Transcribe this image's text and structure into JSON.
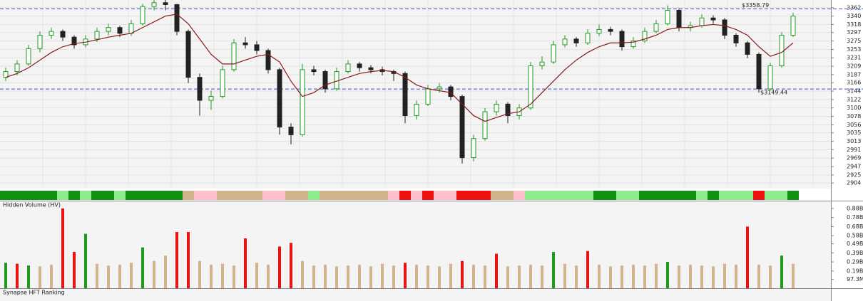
{
  "chart_data": [
    {
      "type": "candlestick",
      "ylim": [
        2895,
        3382
      ],
      "yticks": [
        3362,
        3340,
        3318,
        3297,
        3275,
        3253,
        3231,
        3209,
        3187,
        3166,
        3144,
        3122,
        3100,
        3078,
        3056,
        3035,
        3013,
        2991,
        2969,
        2947,
        2925,
        2904
      ],
      "grid": true,
      "up_color": "#1f9a1f",
      "down_color": "#222222",
      "ma_color": "#8b1a1a",
      "annotation_color": "#3f4fe0",
      "ohlc": [
        [
          3180,
          3205,
          3170,
          3195
        ],
        [
          3195,
          3225,
          3185,
          3215
        ],
        [
          3215,
          3265,
          3210,
          3255
        ],
        [
          3255,
          3300,
          3245,
          3290
        ],
        [
          3290,
          3310,
          3280,
          3300
        ],
        [
          3300,
          3305,
          3275,
          3285
        ],
        [
          3285,
          3290,
          3255,
          3265
        ],
        [
          3265,
          3290,
          3258,
          3280
        ],
        [
          3280,
          3310,
          3272,
          3300
        ],
        [
          3300,
          3320,
          3290,
          3310
        ],
        [
          3310,
          3315,
          3285,
          3295
        ],
        [
          3295,
          3330,
          3288,
          3320
        ],
        [
          3320,
          3372,
          3315,
          3365
        ],
        [
          3365,
          3385,
          3355,
          3375
        ],
        [
          3375,
          3382,
          3355,
          3370
        ],
        [
          3370,
          3372,
          3290,
          3300
        ],
        [
          3300,
          3305,
          3165,
          3180
        ],
        [
          3180,
          3190,
          3080,
          3120
        ],
        [
          3120,
          3145,
          3095,
          3130
        ],
        [
          3130,
          3210,
          3125,
          3200
        ],
        [
          3200,
          3280,
          3195,
          3270
        ],
        [
          3270,
          3285,
          3255,
          3265
        ],
        [
          3265,
          3275,
          3240,
          3250
        ],
        [
          3250,
          3255,
          3190,
          3200
        ],
        [
          3200,
          3205,
          3030,
          3050
        ],
        [
          3050,
          3060,
          3005,
          3030
        ],
        [
          3030,
          3215,
          3025,
          3200
        ],
        [
          3200,
          3210,
          3185,
          3195
        ],
        [
          3195,
          3200,
          3140,
          3150
        ],
        [
          3150,
          3205,
          3145,
          3195
        ],
        [
          3195,
          3225,
          3190,
          3215
        ],
        [
          3215,
          3220,
          3195,
          3205
        ],
        [
          3205,
          3212,
          3190,
          3200
        ],
        [
          3200,
          3208,
          3185,
          3195
        ],
        [
          3195,
          3200,
          3170,
          3190
        ],
        [
          3190,
          3195,
          3060,
          3080
        ],
        [
          3080,
          3120,
          3070,
          3110
        ],
        [
          3110,
          3160,
          3105,
          3150
        ],
        [
          3150,
          3165,
          3140,
          3155
        ],
        [
          3155,
          3160,
          3120,
          3130
        ],
        [
          3130,
          3135,
          2955,
          2970
        ],
        [
          2970,
          3030,
          2960,
          3020
        ],
        [
          3020,
          3100,
          3015,
          3090
        ],
        [
          3090,
          3120,
          3080,
          3110
        ],
        [
          3110,
          3115,
          3060,
          3080
        ],
        [
          3080,
          3110,
          3070,
          3100
        ],
        [
          3100,
          3220,
          3095,
          3210
        ],
        [
          3210,
          3235,
          3200,
          3220
        ],
        [
          3220,
          3275,
          3215,
          3265
        ],
        [
          3265,
          3290,
          3258,
          3280
        ],
        [
          3280,
          3285,
          3260,
          3270
        ],
        [
          3270,
          3305,
          3265,
          3295
        ],
        [
          3295,
          3318,
          3288,
          3305
        ],
        [
          3305,
          3312,
          3290,
          3300
        ],
        [
          3300,
          3305,
          3250,
          3260
        ],
        [
          3260,
          3285,
          3255,
          3275
        ],
        [
          3275,
          3310,
          3270,
          3300
        ],
        [
          3300,
          3330,
          3295,
          3320
        ],
        [
          3320,
          3368,
          3315,
          3355
        ],
        [
          3355,
          3360,
          3300,
          3310
        ],
        [
          3310,
          3325,
          3300,
          3315
        ],
        [
          3315,
          3345,
          3310,
          3335
        ],
        [
          3335,
          3342,
          3320,
          3330
        ],
        [
          3330,
          3335,
          3280,
          3290
        ],
        [
          3290,
          3295,
          3260,
          3270
        ],
        [
          3270,
          3275,
          3230,
          3240
        ],
        [
          3240,
          3245,
          3140,
          3150
        ],
        [
          3150,
          3218,
          3145,
          3210
        ],
        [
          3210,
          3298,
          3205,
          3290
        ],
        [
          3290,
          3348,
          3285,
          3340
        ]
      ],
      "moving_average": [
        3180,
        3190,
        3205,
        3225,
        3245,
        3260,
        3268,
        3272,
        3278,
        3285,
        3290,
        3295,
        3310,
        3325,
        3340,
        3345,
        3320,
        3280,
        3240,
        3215,
        3215,
        3225,
        3235,
        3240,
        3220,
        3170,
        3130,
        3140,
        3160,
        3170,
        3180,
        3190,
        3195,
        3198,
        3195,
        3180,
        3160,
        3150,
        3145,
        3140,
        3110,
        3080,
        3065,
        3075,
        3085,
        3090,
        3110,
        3140,
        3170,
        3200,
        3225,
        3245,
        3260,
        3270,
        3270,
        3272,
        3280,
        3290,
        3305,
        3310,
        3310,
        3315,
        3318,
        3315,
        3305,
        3290,
        3260,
        3235,
        3245,
        3270
      ],
      "band_colors": [
        "#129212",
        "#129212",
        "#129212",
        "#129212",
        "#129212",
        "#8eeb8e",
        "#129212",
        "#8eeb8e",
        "#129212",
        "#129212",
        "#8eeb8e",
        "#129212",
        "#129212",
        "#129212",
        "#129212",
        "#129212",
        "#d2b48c",
        "#ffc0cb",
        "#ffc0cb",
        "#d2b48c",
        "#d2b48c",
        "#d2b48c",
        "#d2b48c",
        "#ffc0cb",
        "#ffc0cb",
        "#d2b48c",
        "#d2b48c",
        "#8eeb8e",
        "#d2b48c",
        "#d2b48c",
        "#d2b48c",
        "#d2b48c",
        "#d2b48c",
        "#d2b48c",
        "#ffc0cb",
        "#ee1111",
        "#ffc0cb",
        "#ee1111",
        "#ffc0cb",
        "#ffc0cb",
        "#ee1111",
        "#ee1111",
        "#ee1111",
        "#d2b48c",
        "#d2b48c",
        "#ffc0cb",
        "#8eeb8e",
        "#8eeb8e",
        "#8eeb8e",
        "#8eeb8e",
        "#8eeb8e",
        "#8eeb8e",
        "#129212",
        "#129212",
        "#8eeb8e",
        "#8eeb8e",
        "#129212",
        "#129212",
        "#129212",
        "#129212",
        "#129212",
        "#8eeb8e",
        "#129212",
        "#8eeb8e",
        "#8eeb8e",
        "#8eeb8e",
        "#ee1111",
        "#8eeb8e",
        "#8eeb8e",
        "#129212"
      ],
      "annotations": [
        {
          "value": 3358.79,
          "label": "$3358.79"
        },
        {
          "value": 3149.44,
          "label": "$3149.44"
        }
      ]
    },
    {
      "type": "bar",
      "title": "Hidden Volume (HV)",
      "ylim": [
        0,
        0.958
      ],
      "yticks": [
        {
          "value": 0.88,
          "label": "0.88B"
        },
        {
          "value": 0.78,
          "label": "0.78B"
        },
        {
          "value": 0.68,
          "label": "0.68B"
        },
        {
          "value": 0.58,
          "label": "0.58B"
        },
        {
          "value": 0.49,
          "label": "0.49B"
        },
        {
          "value": 0.39,
          "label": "0.39B"
        },
        {
          "value": 0.29,
          "label": "0.29B"
        },
        {
          "value": 0.19,
          "label": "0.19B"
        },
        {
          "value": 0.0973,
          "label": "97.3M"
        }
      ],
      "values": [
        0.28,
        0.27,
        0.25,
        0.24,
        0.26,
        0.88,
        0.4,
        0.6,
        0.27,
        0.25,
        0.26,
        0.28,
        0.45,
        0.3,
        0.36,
        0.62,
        0.62,
        0.3,
        0.26,
        0.27,
        0.25,
        0.55,
        0.28,
        0.26,
        0.46,
        0.5,
        0.3,
        0.25,
        0.26,
        0.24,
        0.25,
        0.26,
        0.24,
        0.27,
        0.25,
        0.28,
        0.26,
        0.25,
        0.24,
        0.27,
        0.3,
        0.26,
        0.25,
        0.38,
        0.24,
        0.25,
        0.26,
        0.25,
        0.4,
        0.27,
        0.25,
        0.41,
        0.26,
        0.24,
        0.25,
        0.26,
        0.25,
        0.27,
        0.29,
        0.25,
        0.26,
        0.25,
        0.24,
        0.27,
        0.26,
        0.68,
        0.26,
        0.25,
        0.36,
        0.27
      ],
      "colors": [
        "#1f9a1f",
        "#ee1111",
        "#1f9a1f",
        "#d2b48c",
        "#d2b48c",
        "#ee1111",
        "#ee1111",
        "#1f9a1f",
        "#d2b48c",
        "#d2b48c",
        "#d2b48c",
        "#d2b48c",
        "#1f9a1f",
        "#d2b48c",
        "#d2b48c",
        "#ee1111",
        "#ee1111",
        "#d2b48c",
        "#d2b48c",
        "#d2b48c",
        "#d2b48c",
        "#ee1111",
        "#d2b48c",
        "#d2b48c",
        "#ee1111",
        "#ee1111",
        "#d2b48c",
        "#d2b48c",
        "#d2b48c",
        "#d2b48c",
        "#d2b48c",
        "#d2b48c",
        "#d2b48c",
        "#d2b48c",
        "#d2b48c",
        "#ee1111",
        "#d2b48c",
        "#d2b48c",
        "#d2b48c",
        "#d2b48c",
        "#ee1111",
        "#d2b48c",
        "#d2b48c",
        "#ee1111",
        "#d2b48c",
        "#d2b48c",
        "#d2b48c",
        "#d2b48c",
        "#1f9a1f",
        "#d2b48c",
        "#d2b48c",
        "#ee1111",
        "#d2b48c",
        "#d2b48c",
        "#d2b48c",
        "#d2b48c",
        "#d2b48c",
        "#d2b48c",
        "#1f9a1f",
        "#d2b48c",
        "#d2b48c",
        "#d2b48c",
        "#d2b48c",
        "#d2b48c",
        "#d2b48c",
        "#ee1111",
        "#d2b48c",
        "#d2b48c",
        "#1f9a1f",
        "#d2b48c"
      ]
    },
    {
      "type": "panel",
      "title": "Synapse HFT Ranking"
    }
  ]
}
